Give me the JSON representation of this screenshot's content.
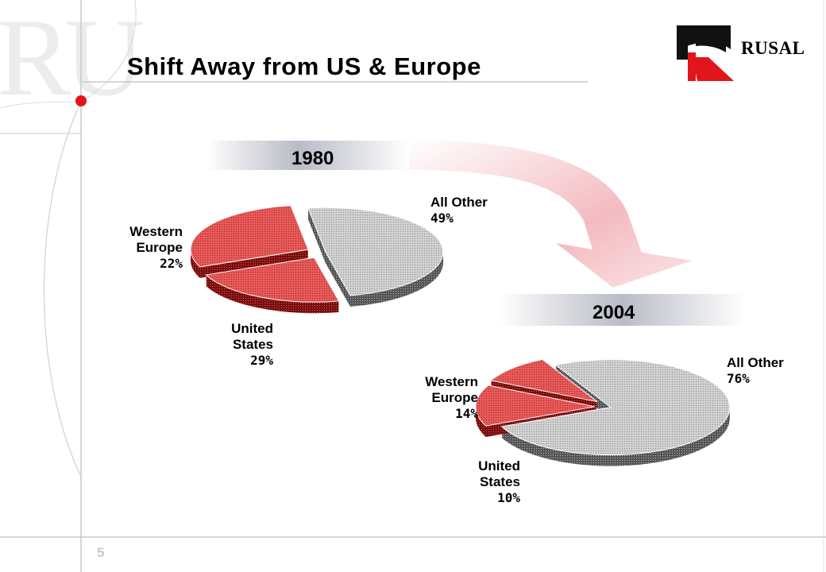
{
  "slide": {
    "title": "Shift Away from US & Europe",
    "page_number": "5",
    "brand_name": "RUSAL",
    "watermark_text": "RU"
  },
  "colors": {
    "accent_red": "#e2141c",
    "us_europe_slice": "#e86a6a",
    "other_slice": "#c8c8c8",
    "year_band": "#9aa0ac"
  },
  "chart_data": [
    {
      "type": "pie",
      "title": "1980",
      "slices": [
        {
          "label_lines": [
            "All Other"
          ],
          "value": 49,
          "value_label": "49%"
        },
        {
          "label_lines": [
            "Western",
            "Europe"
          ],
          "value": 22,
          "value_label": "22%"
        },
        {
          "label_lines": [
            "United",
            "States"
          ],
          "value": 29,
          "value_label": "29%"
        }
      ]
    },
    {
      "type": "pie",
      "title": "2004",
      "slices": [
        {
          "label_lines": [
            "All Other"
          ],
          "value": 76,
          "value_label": "76%"
        },
        {
          "label_lines": [
            "Western",
            "Europe"
          ],
          "value": 14,
          "value_label": "14%"
        },
        {
          "label_lines": [
            "United",
            "States"
          ],
          "value": 10,
          "value_label": "10%"
        }
      ]
    }
  ]
}
